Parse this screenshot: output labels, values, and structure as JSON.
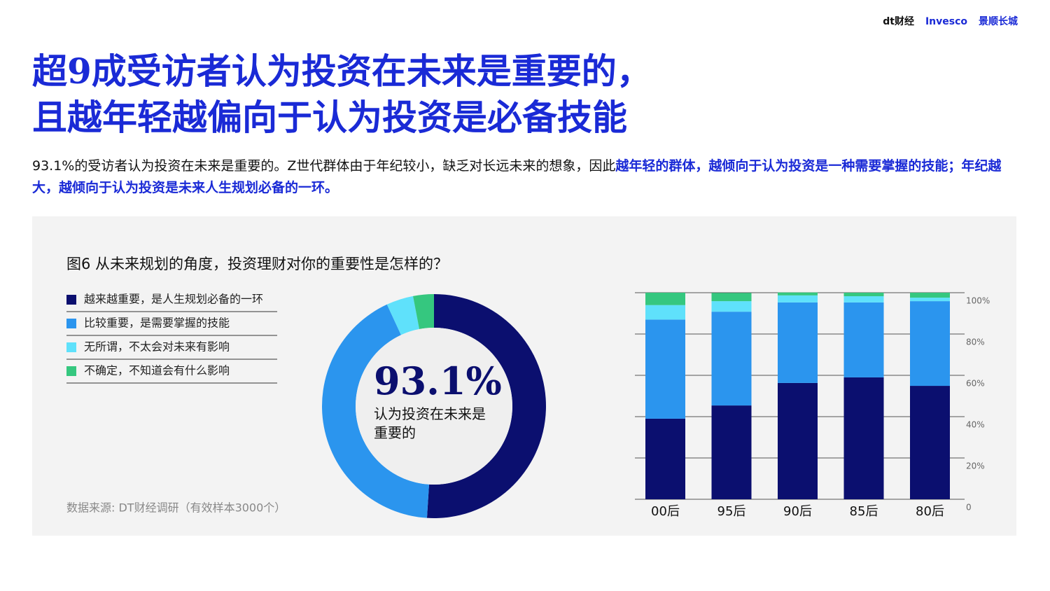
{
  "header": {
    "logos": [
      "dt财经",
      "Invesco",
      "景顺长城"
    ]
  },
  "title": [
    "超9成受访者认为投资在未来是重要的，",
    "且越年轻越偏向于认为投资是必备技能"
  ],
  "paragraph": [
    {
      "text": "93.1%的受访者认为投资在未来是重要的。Z世代群体由于年纪较小，缺乏对长远未来的想象，因此",
      "bold": false
    },
    {
      "text": "越年轻的群体，越倾向于认为投资是一种需要掌握的技能；年纪越大，越倾向于认为投资是未来人生规划必备的一环。",
      "bold": true
    }
  ],
  "source": "数据来源: DT财经调研（有效样本3000个）",
  "chart_data": [
    {
      "type": "donut",
      "title": "图6  从未来规划的角度，投资理财对你的重要性是怎样的？",
      "categories": [
        "越来越重要，是人生规划必备的一环",
        "比较重要，是需要掌握的技能",
        "无所谓，不太会对未来有影响",
        "不确定，不知道会有什么影响"
      ],
      "values": [
        51,
        42.1,
        3.9,
        3
      ],
      "colors": [
        "#0b0f6f",
        "#2b95ee",
        "#5fe1fb",
        "#35c77f"
      ],
      "center_value": "93.1%",
      "center_label": "认为投资在未来是重要的"
    },
    {
      "type": "stacked_bar",
      "categories": [
        "00后",
        "95后",
        "90后",
        "85后",
        "80后"
      ],
      "series": [
        {
          "color": "#0b0f6f",
          "values": [
            39,
            45.4,
            56.3,
            59,
            54.9
          ]
        },
        {
          "color": "#2b95ee",
          "values": [
            48,
            45.4,
            39,
            36.3,
            41
          ]
        },
        {
          "color": "#5fe1fb",
          "values": [
            7,
            5.1,
            3.4,
            3,
            1.7
          ]
        },
        {
          "color": "#35c77f",
          "values": [
            6,
            4,
            1.4,
            1.7,
            2.4
          ]
        }
      ],
      "ylim": [
        0,
        100
      ],
      "yticks": [
        0,
        {
          "value": 20,
          "label": "20%"
        },
        {
          "value": 40,
          "label": "40%"
        },
        {
          "value": 60,
          "label": "60%"
        },
        {
          "value": 80,
          "label": "80%"
        },
        {
          "value": 100,
          "label": "100%"
        }
      ],
      "grid": true,
      "y_axis_side": "right"
    }
  ]
}
